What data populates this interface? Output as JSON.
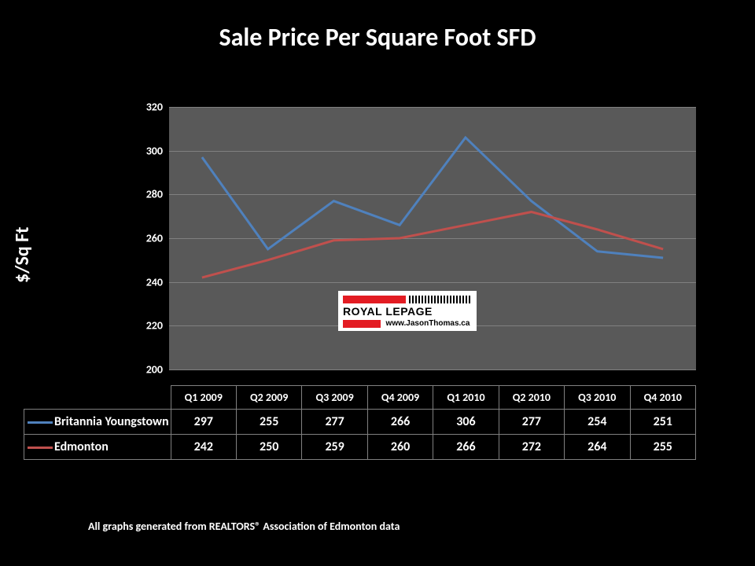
{
  "title": "Sale Price Per Square Foot SFD",
  "title_fontsize": 32,
  "ylabel": "$/Sq Ft",
  "ylabel_fontsize": 24,
  "footnote": "All graphs generated from REALTORS® Association of Edmonton data",
  "footnote_fontsize": 14,
  "logo": {
    "brand": "ROYAL LEPAGE",
    "url": "www.JasonThomas.ca",
    "red": "#e31c23"
  },
  "chart": {
    "type": "line",
    "background_color": "#595959",
    "grid_color": "#808080",
    "categories": [
      "Q1 2009",
      "Q2 2009",
      "Q3 2009",
      "Q4 2009",
      "Q1 2010",
      "Q2 2010",
      "Q3 2010",
      "Q4 2010"
    ],
    "ylim": [
      200,
      320
    ],
    "ytick_step": 20,
    "yticks": [
      200,
      220,
      240,
      260,
      280,
      300,
      320
    ],
    "tick_fontsize": 14,
    "line_width": 3,
    "series": [
      {
        "name": "Britannia Youngstown",
        "color": "#4f81bd",
        "values": [
          297,
          255,
          277,
          266,
          306,
          277,
          254,
          251
        ]
      },
      {
        "name": "Edmonton",
        "color": "#c0504d",
        "values": [
          242,
          250,
          259,
          260,
          266,
          272,
          264,
          255
        ]
      }
    ]
  }
}
